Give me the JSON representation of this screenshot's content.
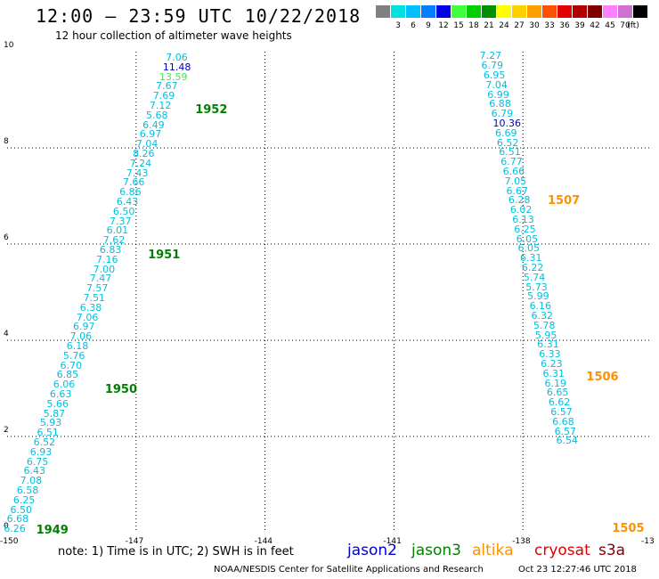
{
  "header": {
    "title": "12:00 — 23:59 UTC 10/22/2018",
    "subtitle": "12 hour collection of altimeter wave heights"
  },
  "colorbar": {
    "unit": "(ft)",
    "swatches": [
      {
        "color": "#808080",
        "label": ""
      },
      {
        "color": "#00e0e0",
        "label": "3"
      },
      {
        "color": "#00c0ff",
        "label": "6"
      },
      {
        "color": "#0080ff",
        "label": "9"
      },
      {
        "color": "#0000e0",
        "label": "12"
      },
      {
        "color": "#40ff40",
        "label": "15"
      },
      {
        "color": "#00d000",
        "label": "18"
      },
      {
        "color": "#009000",
        "label": "21"
      },
      {
        "color": "#ffff00",
        "label": "24"
      },
      {
        "color": "#ffd000",
        "label": "27"
      },
      {
        "color": "#ffa000",
        "label": "30"
      },
      {
        "color": "#ff5000",
        "label": "33"
      },
      {
        "color": "#e00000",
        "label": "36"
      },
      {
        "color": "#b00000",
        "label": "39"
      },
      {
        "color": "#800000",
        "label": "42"
      },
      {
        "color": "#ff80ff",
        "label": "45"
      },
      {
        "color": "#d070d0",
        "label": "70"
      },
      {
        "color": "#000000",
        "label": ""
      }
    ]
  },
  "axes": {
    "x_ticks": [
      "-150",
      "-147",
      "-144",
      "-141",
      "-138",
      "-13"
    ],
    "y_ticks": [
      "0",
      "2",
      "4",
      "6",
      "8",
      "10"
    ],
    "x_range": [
      -150,
      -135
    ],
    "y_range": [
      0,
      10
    ]
  },
  "tracks": [
    {
      "satellite": "jason3",
      "points": [
        {
          "lon": -149.87,
          "lat": 0.07,
          "v": "6.26",
          "c": "#00c0e0"
        },
        {
          "lon": -149.8,
          "lat": 0.27,
          "v": "6.68",
          "c": "#00c0e0"
        },
        {
          "lon": -149.72,
          "lat": 0.47,
          "v": "6.50",
          "c": "#00c0e0"
        },
        {
          "lon": -149.65,
          "lat": 0.67,
          "v": "6.25",
          "c": "#00c0e0"
        },
        {
          "lon": -149.57,
          "lat": 0.87,
          "v": "6.58",
          "c": "#00c0e0"
        },
        {
          "lon": -149.49,
          "lat": 1.07,
          "v": "7.08",
          "c": "#00c0e0"
        },
        {
          "lon": -149.41,
          "lat": 1.27,
          "v": "6.43",
          "c": "#00c0e0"
        },
        {
          "lon": -149.34,
          "lat": 1.47,
          "v": "6.75",
          "c": "#00c0e0"
        },
        {
          "lon": -149.26,
          "lat": 1.67,
          "v": "6.93",
          "c": "#00c0e0"
        },
        {
          "lon": -149.18,
          "lat": 1.87,
          "v": "6.52",
          "c": "#00c0e0"
        },
        {
          "lon": -149.1,
          "lat": 2.07,
          "v": "6.51",
          "c": "#00c0e0"
        },
        {
          "lon": -149.03,
          "lat": 2.27,
          "v": "5.93",
          "c": "#00c0e0"
        },
        {
          "lon": -148.95,
          "lat": 2.47,
          "v": "5.87",
          "c": "#00c0e0"
        },
        {
          "lon": -148.87,
          "lat": 2.67,
          "v": "5.66",
          "c": "#00c0e0"
        },
        {
          "lon": -148.8,
          "lat": 2.87,
          "v": "6.63",
          "c": "#00c0e0"
        },
        {
          "lon": -148.72,
          "lat": 3.07,
          "v": "6.06",
          "c": "#00c0e0"
        },
        {
          "lon": -148.64,
          "lat": 3.27,
          "v": "6.85",
          "c": "#00c0e0"
        },
        {
          "lon": -148.56,
          "lat": 3.47,
          "v": "6.70",
          "c": "#00c0e0"
        },
        {
          "lon": -148.49,
          "lat": 3.67,
          "v": "5.76",
          "c": "#00c0e0"
        },
        {
          "lon": -148.41,
          "lat": 3.87,
          "v": "6.18",
          "c": "#00c0e0"
        },
        {
          "lon": -148.33,
          "lat": 4.07,
          "v": "7.06",
          "c": "#00c0e0"
        },
        {
          "lon": -148.26,
          "lat": 4.27,
          "v": "6.97",
          "c": "#00c0e0"
        },
        {
          "lon": -148.18,
          "lat": 4.47,
          "v": "7.06",
          "c": "#00c0e0"
        },
        {
          "lon": -148.1,
          "lat": 4.67,
          "v": "6.38",
          "c": "#00c0e0"
        },
        {
          "lon": -148.02,
          "lat": 4.87,
          "v": "7.51",
          "c": "#00c0e0"
        },
        {
          "lon": -147.95,
          "lat": 5.07,
          "v": "7.57",
          "c": "#00c0e0"
        },
        {
          "lon": -147.87,
          "lat": 5.27,
          "v": "7.47",
          "c": "#00c0e0"
        },
        {
          "lon": -147.79,
          "lat": 5.47,
          "v": "7.00",
          "c": "#00c0e0"
        },
        {
          "lon": -147.72,
          "lat": 5.67,
          "v": "7.16",
          "c": "#00c0e0"
        },
        {
          "lon": -147.64,
          "lat": 5.87,
          "v": "6.83",
          "c": "#00c0e0"
        },
        {
          "lon": -147.56,
          "lat": 6.07,
          "v": "7.62",
          "c": "#00c0e0"
        },
        {
          "lon": -147.48,
          "lat": 6.27,
          "v": "6.01",
          "c": "#00c0e0"
        },
        {
          "lon": -147.41,
          "lat": 6.47,
          "v": "7.37",
          "c": "#00c0e0"
        },
        {
          "lon": -147.33,
          "lat": 6.67,
          "v": "6.50",
          "c": "#00c0e0"
        },
        {
          "lon": -147.25,
          "lat": 6.87,
          "v": "6.43",
          "c": "#00c0e0"
        },
        {
          "lon": -147.18,
          "lat": 7.07,
          "v": "6.86",
          "c": "#00c0e0"
        },
        {
          "lon": -147.1,
          "lat": 7.27,
          "v": "7.66",
          "c": "#00c0e0"
        },
        {
          "lon": -147.02,
          "lat": 7.47,
          "v": "7.43",
          "c": "#00c0e0"
        },
        {
          "lon": -146.94,
          "lat": 7.67,
          "v": "7.24",
          "c": "#00c0e0"
        },
        {
          "lon": -146.87,
          "lat": 7.87,
          "v": "8.26",
          "c": "#00c0e0"
        },
        {
          "lon": -146.79,
          "lat": 8.07,
          "v": "7.04",
          "c": "#00c0e0"
        },
        {
          "lon": -146.71,
          "lat": 8.27,
          "v": "6.97",
          "c": "#00c0e0"
        },
        {
          "lon": -146.64,
          "lat": 8.47,
          "v": "6.49",
          "c": "#00c0e0"
        },
        {
          "lon": -146.56,
          "lat": 8.67,
          "v": "5.68",
          "c": "#00c0e0"
        },
        {
          "lon": -146.48,
          "lat": 8.87,
          "v": "7.12",
          "c": "#00c0e0"
        },
        {
          "lon": -146.4,
          "lat": 9.07,
          "v": "7.69",
          "c": "#00c0e0"
        },
        {
          "lon": -146.33,
          "lat": 9.27,
          "v": "7.67",
          "c": "#00c0e0"
        },
        {
          "lon": -146.25,
          "lat": 9.47,
          "v": "13.59",
          "c": "#50e050"
        },
        {
          "lon": -146.17,
          "lat": 9.67,
          "v": "11.48",
          "c": "#0000c0"
        },
        {
          "lon": -146.1,
          "lat": 9.87,
          "v": "7.06",
          "c": "#00c0e0"
        }
      ],
      "revs": [
        {
          "label": "1949",
          "lon": -149.2,
          "lat": 0.04,
          "c": "#008000"
        },
        {
          "label": "1950",
          "lon": -147.6,
          "lat": 2.97,
          "c": "#008000"
        },
        {
          "label": "1951",
          "lon": -146.6,
          "lat": 5.76,
          "c": "#008000"
        },
        {
          "label": "1952",
          "lon": -145.5,
          "lat": 8.78,
          "c": "#008000"
        }
      ]
    },
    {
      "satellite": "altika",
      "points": [
        {
          "lon": -138.8,
          "lat": 9.9,
          "v": "7.27",
          "c": "#00c0e0"
        },
        {
          "lon": -138.76,
          "lat": 9.7,
          "v": "6.79",
          "c": "#00c0e0"
        },
        {
          "lon": -138.71,
          "lat": 9.5,
          "v": "6.95",
          "c": "#00c0e0"
        },
        {
          "lon": -138.66,
          "lat": 9.3,
          "v": "7.04",
          "c": "#00c0e0"
        },
        {
          "lon": -138.62,
          "lat": 9.1,
          "v": "6.99",
          "c": "#00c0e0"
        },
        {
          "lon": -138.58,
          "lat": 8.9,
          "v": "6.88",
          "c": "#00c0e0"
        },
        {
          "lon": -138.53,
          "lat": 8.7,
          "v": "6.79",
          "c": "#00c0e0"
        },
        {
          "lon": -138.49,
          "lat": 8.5,
          "v": "10.36",
          "c": "#0000c0"
        },
        {
          "lon": -138.44,
          "lat": 8.3,
          "v": "6.69",
          "c": "#00c0e0"
        },
        {
          "lon": -138.4,
          "lat": 8.1,
          "v": "6.52",
          "c": "#00c0e0"
        },
        {
          "lon": -138.35,
          "lat": 7.9,
          "v": "6.51",
          "c": "#00c0e0"
        },
        {
          "lon": -138.31,
          "lat": 7.7,
          "v": "6.77",
          "c": "#00c0e0"
        },
        {
          "lon": -138.26,
          "lat": 7.5,
          "v": "6.66",
          "c": "#00c0e0"
        },
        {
          "lon": -138.22,
          "lat": 7.3,
          "v": "7.05",
          "c": "#00c0e0"
        },
        {
          "lon": -138.18,
          "lat": 7.1,
          "v": "6.67",
          "c": "#00c0e0"
        },
        {
          "lon": -138.13,
          "lat": 6.9,
          "v": "6.28",
          "c": "#00c0e0"
        },
        {
          "lon": -138.09,
          "lat": 6.7,
          "v": "6.02",
          "c": "#00c0e0"
        },
        {
          "lon": -138.04,
          "lat": 6.5,
          "v": "6.13",
          "c": "#00c0e0"
        },
        {
          "lon": -138.0,
          "lat": 6.3,
          "v": "6.25",
          "c": "#00c0e0"
        },
        {
          "lon": -137.95,
          "lat": 6.1,
          "v": "6.05",
          "c": "#00c0e0"
        },
        {
          "lon": -137.91,
          "lat": 5.9,
          "v": "6.05",
          "c": "#00c0e0"
        },
        {
          "lon": -137.86,
          "lat": 5.7,
          "v": "6.31",
          "c": "#00c0e0"
        },
        {
          "lon": -137.82,
          "lat": 5.5,
          "v": "6.22",
          "c": "#00c0e0"
        },
        {
          "lon": -137.78,
          "lat": 5.3,
          "v": "5.74",
          "c": "#00c0e0"
        },
        {
          "lon": -137.73,
          "lat": 5.1,
          "v": "5.73",
          "c": "#00c0e0"
        },
        {
          "lon": -137.69,
          "lat": 4.9,
          "v": "5.99",
          "c": "#00c0e0"
        },
        {
          "lon": -137.64,
          "lat": 4.7,
          "v": "6.16",
          "c": "#00c0e0"
        },
        {
          "lon": -137.6,
          "lat": 4.5,
          "v": "6.32",
          "c": "#00c0e0"
        },
        {
          "lon": -137.55,
          "lat": 4.3,
          "v": "5.78",
          "c": "#00c0e0"
        },
        {
          "lon": -137.51,
          "lat": 4.1,
          "v": "5.95",
          "c": "#00c0e0"
        },
        {
          "lon": -137.46,
          "lat": 3.9,
          "v": "6.31",
          "c": "#00c0e0"
        },
        {
          "lon": -137.42,
          "lat": 3.7,
          "v": "6.33",
          "c": "#00c0e0"
        },
        {
          "lon": -137.38,
          "lat": 3.5,
          "v": "6.23",
          "c": "#00c0e0"
        },
        {
          "lon": -137.33,
          "lat": 3.3,
          "v": "6.31",
          "c": "#00c0e0"
        },
        {
          "lon": -137.29,
          "lat": 3.1,
          "v": "6.19",
          "c": "#00c0e0"
        },
        {
          "lon": -137.24,
          "lat": 2.9,
          "v": "6.65",
          "c": "#00c0e0"
        },
        {
          "lon": -137.2,
          "lat": 2.7,
          "v": "6.62",
          "c": "#00c0e0"
        },
        {
          "lon": -137.15,
          "lat": 2.5,
          "v": "6.57",
          "c": "#00c0e0"
        },
        {
          "lon": -137.11,
          "lat": 2.3,
          "v": "6.68",
          "c": "#00c0e0"
        },
        {
          "lon": -137.06,
          "lat": 2.1,
          "v": "6.57",
          "c": "#00c0e0"
        },
        {
          "lon": -137.02,
          "lat": 1.9,
          "v": "6.54",
          "c": "#00c0e0"
        }
      ],
      "revs": [
        {
          "label": "1507",
          "lon": -137.3,
          "lat": 6.89,
          "c": "#ff9000"
        },
        {
          "label": "1506",
          "lon": -136.4,
          "lat": 3.23,
          "c": "#ff9000"
        },
        {
          "label": "1505",
          "lon": -135.8,
          "lat": 0.07,
          "c": "#ff9000"
        }
      ]
    }
  ],
  "notes": {
    "text": "note:  1) Time is in UTC; 2) SWH is in feet",
    "satellites": [
      {
        "name": "jason2",
        "color": "#0000d0"
      },
      {
        "name": "jason3",
        "color": "#008000"
      },
      {
        "name": "altika",
        "color": "#ff9000"
      },
      {
        "name": "cryosat",
        "color": "#e00000"
      },
      {
        "name": "s3a",
        "color": "#800000"
      }
    ],
    "credit": "NOAA/NESDIS Center for Satellite Applications and Research",
    "timestamp": "Oct 23 12:27:46 UTC 2018"
  }
}
